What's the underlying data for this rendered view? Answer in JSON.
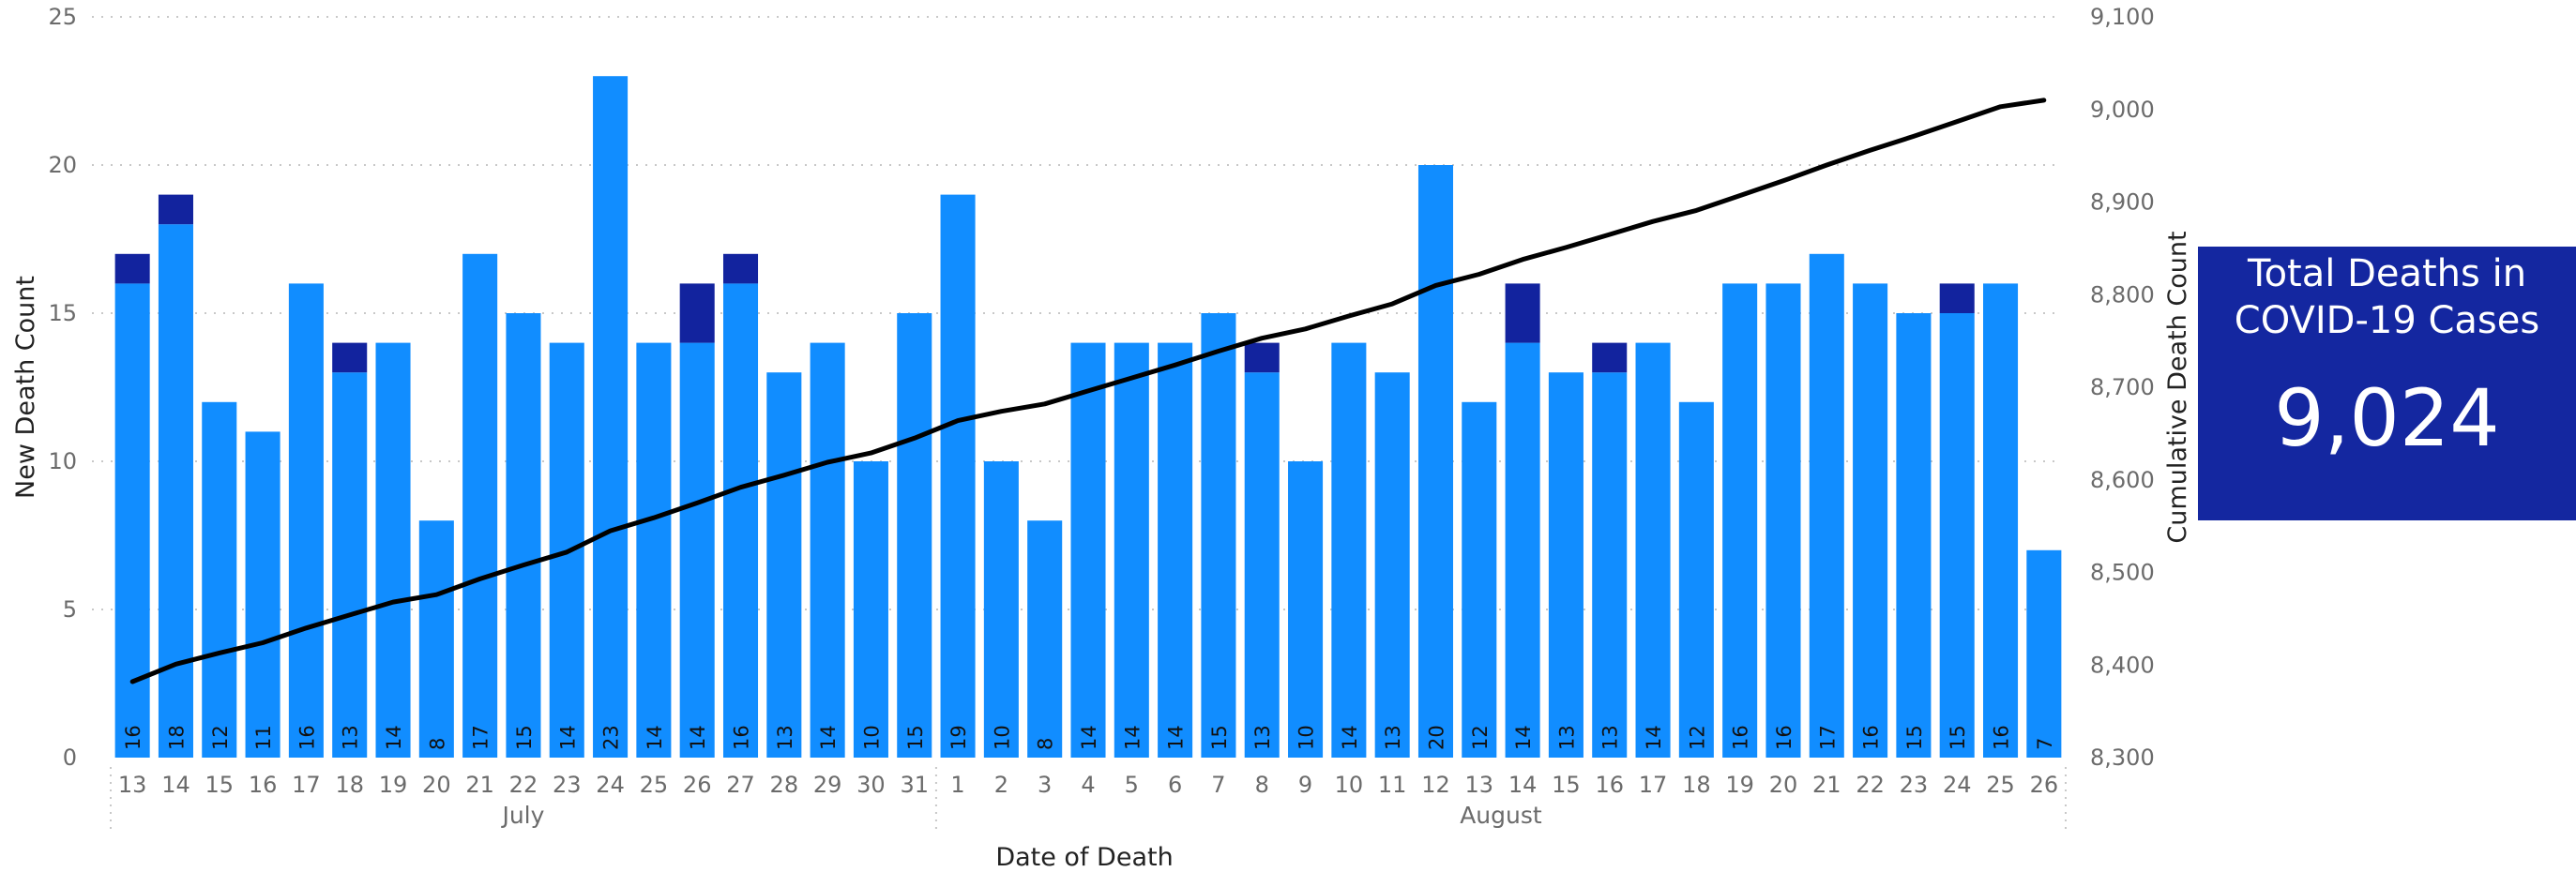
{
  "chart_data": {
    "type": "bar",
    "y_axis_title": "New Death Count",
    "y2_axis_title": "Cumulative Death Count",
    "x_axis_title": "Date of Death",
    "y_ticks": [
      "0",
      "5",
      "10",
      "15",
      "20",
      "25"
    ],
    "y2_ticks": [
      "8,300",
      "8,400",
      "8,500",
      "8,600",
      "8,700",
      "8,800",
      "8,900",
      "9,000",
      "9,100"
    ],
    "ylim": [
      0,
      25
    ],
    "y2lim": [
      8300,
      9100
    ],
    "grid": true,
    "months": [
      {
        "label": "July",
        "first_index": 0,
        "last_index": 18
      },
      {
        "label": "August",
        "first_index": 19,
        "last_index": 44
      }
    ],
    "categories": [
      "13",
      "14",
      "15",
      "16",
      "17",
      "18",
      "19",
      "20",
      "21",
      "22",
      "23",
      "24",
      "25",
      "26",
      "27",
      "28",
      "29",
      "30",
      "31",
      "1",
      "2",
      "3",
      "4",
      "5",
      "6",
      "7",
      "8",
      "9",
      "10",
      "11",
      "12",
      "13",
      "14",
      "15",
      "16",
      "17",
      "18",
      "19",
      "20",
      "21",
      "22",
      "23",
      "24",
      "25",
      "26"
    ],
    "series": [
      {
        "values": [
          16,
          18,
          12,
          11,
          16,
          13,
          14,
          8,
          17,
          15,
          14,
          23,
          14,
          14,
          16,
          13,
          14,
          10,
          15,
          19,
          10,
          8,
          14,
          14,
          14,
          15,
          13,
          10,
          14,
          13,
          20,
          12,
          14,
          13,
          13,
          14,
          12,
          16,
          16,
          17,
          16,
          15,
          15,
          16,
          7
        ],
        "color": "#118dff"
      },
      {
        "values": [
          1,
          1,
          0,
          0,
          0,
          1,
          0,
          0,
          0,
          0,
          0,
          0,
          0,
          2,
          1,
          0,
          0,
          0,
          0,
          0,
          0,
          0,
          0,
          0,
          0,
          0,
          1,
          0,
          0,
          0,
          0,
          0,
          2,
          0,
          1,
          0,
          0,
          0,
          0,
          0,
          0,
          0,
          1,
          0,
          0
        ],
        "color": "#12239e"
      },
      {
        "type": "line",
        "values": [
          8382,
          8401,
          8413,
          8424,
          8440,
          8454,
          8468,
          8476,
          8493,
          8508,
          8522,
          8545,
          8559,
          8575,
          8592,
          8605,
          8619,
          8629,
          8645,
          8664,
          8674,
          8682,
          8696,
          8710,
          8724,
          8739,
          8753,
          8763,
          8777,
          8790,
          8810,
          8822,
          8838,
          8851,
          8865,
          8879,
          8891,
          8907,
          8923,
          8940,
          8956,
          8971,
          8987,
          9003,
          9010
        ],
        "color": "#000000"
      }
    ],
    "bar_labels": [
      "16",
      "18",
      "12",
      "11",
      "16",
      "13",
      "14",
      "8",
      "17",
      "15",
      "14",
      "23",
      "14",
      "14",
      "16",
      "13",
      "14",
      "10",
      "15",
      "19",
      "10",
      "8",
      "14",
      "14",
      "14",
      "15",
      "13",
      "10",
      "14",
      "13",
      "20",
      "12",
      "14",
      "13",
      "13",
      "14",
      "12",
      "16",
      "16",
      "17",
      "16",
      "15",
      "15",
      "16",
      "7"
    ]
  },
  "card": {
    "title": "Total Deaths in\nCOVID-19 Cases",
    "value": "9,024",
    "color": "#12239e"
  }
}
